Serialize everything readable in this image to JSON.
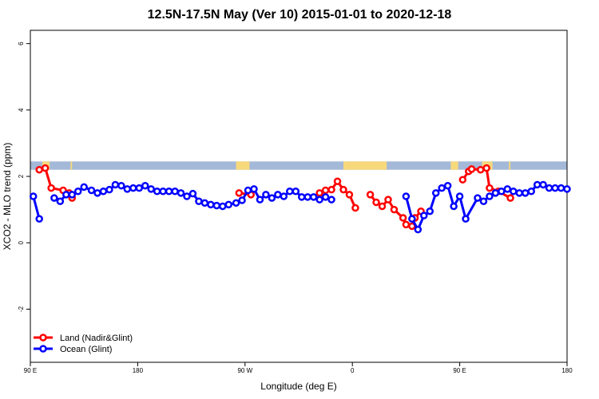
{
  "chart_data": {
    "type": "line",
    "title": "12.5N-17.5N May (Ver 10)   2015-01-01 to 2020-12-18",
    "xlabel": "Longitude (deg E)",
    "ylabel": "XCO2 - MLO trend (ppm)",
    "xlim": [
      90,
      450
    ],
    "ylim": [
      -3.6,
      6.4
    ],
    "x_ticks": [
      {
        "value": 90,
        "label": "90 E"
      },
      {
        "value": 162,
        "label": "180"
      },
      {
        "value": 234,
        "label": "90 W"
      },
      {
        "value": 306,
        "label": "0"
      },
      {
        "value": 378,
        "label": "90 E"
      },
      {
        "value": 450,
        "label": "180"
      }
    ],
    "y_ticks": [
      {
        "value": -2,
        "label": "-2"
      },
      {
        "value": 0,
        "label": "0"
      },
      {
        "value": 2,
        "label": "2"
      },
      {
        "value": 4,
        "label": "4"
      },
      {
        "value": 6,
        "label": "6"
      }
    ],
    "legend_position": "bottom-left",
    "land_mask": {
      "y_bottom": 2.2,
      "y_top": 2.45,
      "ocean_color": "#A4B8D8",
      "land_color": "#F7D97C",
      "land_ranges": [
        [
          98,
          103
        ],
        [
          117,
          118
        ],
        [
          228,
          237
        ],
        [
          300,
          329
        ],
        [
          372,
          377
        ],
        [
          393,
          400
        ],
        [
          411,
          412
        ]
      ]
    },
    "series": [
      {
        "name": "Land (Nadir&Glint)",
        "color": "#FF0000",
        "x": [
          96,
          100,
          104,
          112,
          116,
          118,
          230,
          238,
          284,
          288,
          292,
          296,
          300,
          304,
          308,
          318,
          322,
          326,
          330,
          334,
          340,
          342,
          346,
          348,
          352,
          380,
          384,
          386,
          392,
          396,
          398,
          404,
          412
        ],
        "y": [
          2.2,
          2.25,
          1.65,
          1.58,
          1.5,
          1.35,
          1.5,
          1.45,
          1.5,
          1.58,
          1.6,
          1.85,
          1.6,
          1.45,
          1.05,
          1.45,
          1.22,
          1.1,
          1.3,
          1.0,
          0.75,
          0.55,
          0.5,
          0.75,
          0.95,
          1.9,
          2.15,
          2.22,
          2.2,
          2.25,
          1.65,
          1.55,
          1.35
        ]
      },
      {
        "name": "Ocean (Glint)",
        "color": "#0000FF",
        "x": [
          92,
          96,
          106,
          110,
          114,
          118,
          122,
          126,
          131,
          135,
          139,
          143,
          147,
          151,
          155,
          159,
          163,
          167,
          171,
          175,
          179,
          183,
          187,
          191,
          195,
          199,
          203,
          207,
          211,
          215,
          219,
          223,
          228,
          232,
          236,
          240,
          244,
          248,
          252,
          256,
          260,
          264,
          268,
          272,
          276,
          280,
          284,
          288,
          292,
          342,
          346,
          350,
          354,
          358,
          362,
          366,
          370,
          374,
          378,
          382,
          390,
          394,
          398,
          402,
          406,
          410,
          414,
          418,
          422,
          426,
          430,
          434,
          438,
          442,
          446,
          450
        ],
        "y": [
          1.4,
          0.72,
          1.35,
          1.25,
          1.45,
          1.45,
          1.55,
          1.68,
          1.58,
          1.5,
          1.55,
          1.6,
          1.75,
          1.72,
          1.62,
          1.65,
          1.65,
          1.72,
          1.62,
          1.55,
          1.55,
          1.55,
          1.55,
          1.5,
          1.4,
          1.48,
          1.25,
          1.2,
          1.15,
          1.12,
          1.1,
          1.15,
          1.2,
          1.28,
          1.58,
          1.62,
          1.3,
          1.45,
          1.35,
          1.45,
          1.4,
          1.55,
          1.55,
          1.38,
          1.38,
          1.38,
          1.3,
          1.38,
          1.3,
          1.4,
          0.72,
          0.4,
          0.82,
          0.95,
          1.5,
          1.65,
          1.72,
          1.1,
          1.4,
          0.72,
          1.35,
          1.25,
          1.4,
          1.5,
          1.55,
          1.62,
          1.55,
          1.5,
          1.5,
          1.55,
          1.75,
          1.75,
          1.65,
          1.65,
          1.65,
          1.62
        ]
      }
    ]
  }
}
